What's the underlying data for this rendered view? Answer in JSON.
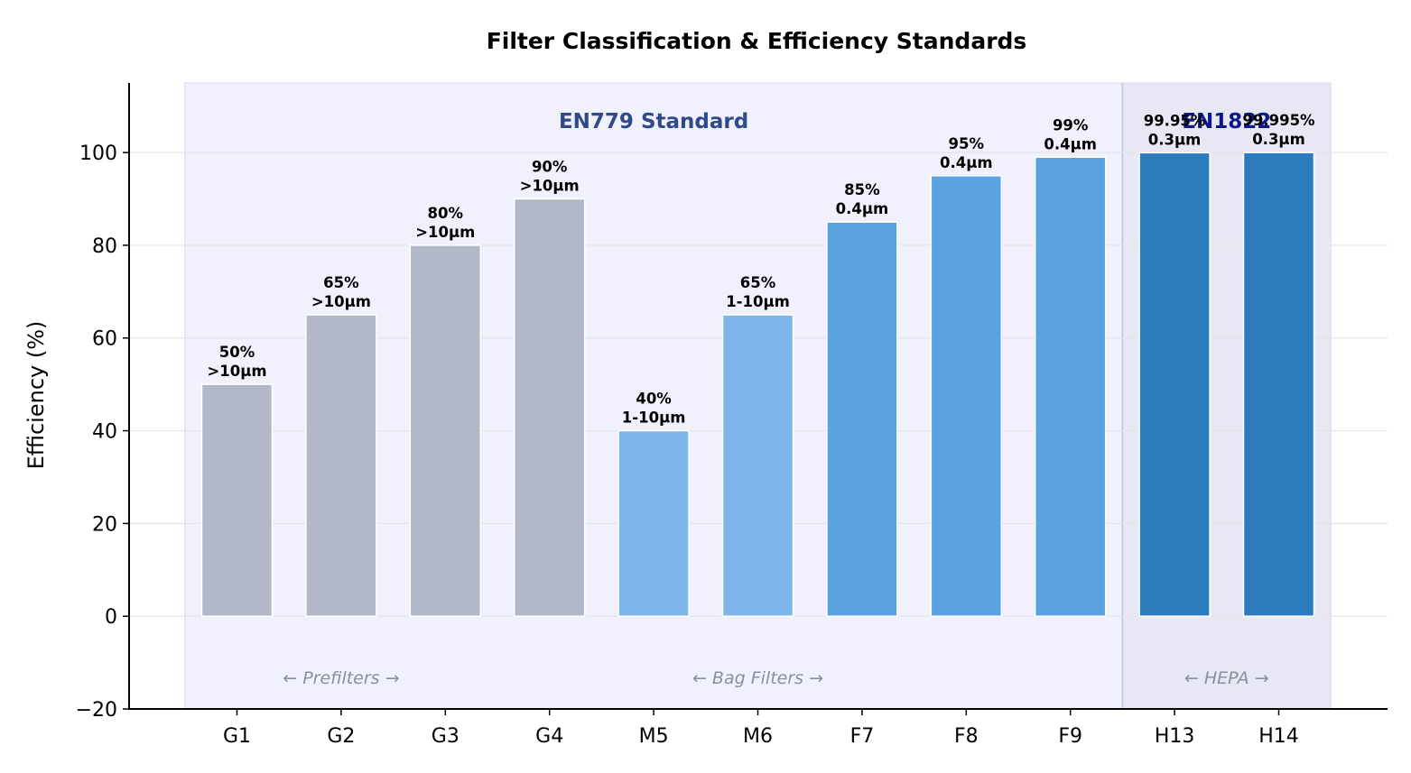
{
  "chart_data": {
    "type": "bar",
    "title": "Filter Classification & Efficiency Standards",
    "xlabel": "",
    "ylabel": "Efficiency (%)",
    "ylim": [
      -20,
      115
    ],
    "yticks": [
      -20,
      0,
      20,
      40,
      60,
      80,
      100
    ],
    "grid": "horizontal",
    "categories": [
      "G1",
      "G2",
      "G3",
      "G4",
      "M5",
      "M6",
      "F7",
      "F8",
      "F9",
      "H13",
      "H14"
    ],
    "values": [
      50,
      65,
      80,
      90,
      40,
      65,
      85,
      95,
      99,
      99.95,
      99.995
    ],
    "value_labels": [
      "50%",
      "65%",
      "80%",
      "90%",
      "40%",
      "65%",
      "85%",
      "95%",
      "99%",
      "99.95%",
      "99.995%"
    ],
    "particle_sizes": [
      ">10µm",
      ">10µm",
      ">10µm",
      ">10µm",
      "1-10µm",
      "1-10µm",
      "0.4µm",
      "0.4µm",
      "0.4µm",
      "0.3µm",
      "0.3µm"
    ],
    "bar_colors": [
      "#b3b8c8",
      "#b3b8c8",
      "#b3b8c8",
      "#b3b8c8",
      "#7eb6e9",
      "#7eb6e9",
      "#5ba3e0",
      "#5ba3e0",
      "#5ba3e0",
      "#2b7bbd",
      "#2b7bbd"
    ],
    "regions": [
      {
        "label": "EN779 Standard",
        "from_index": 0,
        "to_index": 8,
        "color": "#f0f1fc",
        "label_color": "#2e4a8a"
      },
      {
        "label": "EN1822",
        "from_index": 9,
        "to_index": 10,
        "color": "#e7e8f3",
        "label_color": "#0d1a8a"
      }
    ],
    "groups": [
      {
        "label": "← Prefilters →",
        "from_index": 0,
        "to_index": 2
      },
      {
        "label": "← Bag Filters →",
        "from_index": 4,
        "to_index": 6
      },
      {
        "label": "← HEPA →",
        "from_index": 9,
        "to_index": 10
      }
    ]
  }
}
